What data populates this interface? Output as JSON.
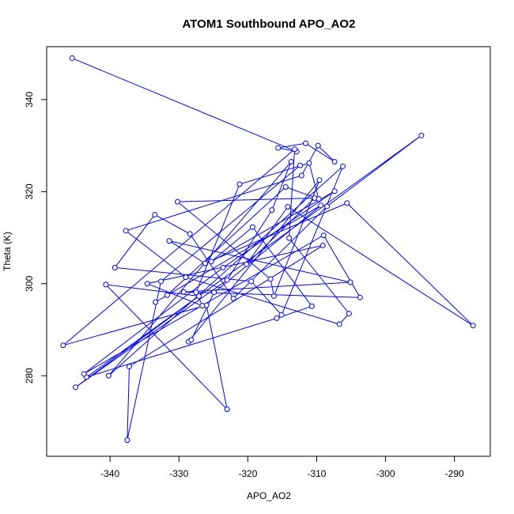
{
  "chart_data": {
    "type": "scatter",
    "connected": true,
    "title": "ATOM1 Southbound APO_AO2",
    "xlabel": "APO_AO2",
    "ylabel": "Theta (K)",
    "xlim": [
      -349.2,
      -284.8
    ],
    "ylim": [
      262.5,
      351.5
    ],
    "xticks": [
      -340,
      -330,
      -320,
      -310,
      -300,
      -290
    ],
    "xtick_labels": [
      "-340",
      "-330",
      "-320",
      "-310",
      "-300",
      "-290"
    ],
    "yticks": [
      280,
      300,
      320,
      340
    ],
    "ytick_labels": [
      "280",
      "300",
      "320",
      "340"
    ],
    "grid": false,
    "color": "#0000ff",
    "marker": "open-circle",
    "series": [
      {
        "x": [
          -345.5,
          -312.9,
          -315.6,
          -311.6,
          -307.4,
          -309.8,
          -312.2,
          -337.7,
          -329.0,
          -306.7,
          -305.3,
          -314.0,
          -313.2,
          -346.8,
          -326.0,
          -323.0,
          -340.6,
          -327.1,
          -345.0,
          -323.0,
          -316.5,
          -313.7,
          -340.2,
          -306.2,
          -315.1,
          -319.5,
          -339.3,
          -333.5,
          -328.4,
          -322.1,
          -308.5,
          -294.8,
          -343.4,
          -315.8,
          -310.7,
          -319.3,
          -325.3,
          -307.4,
          -323.6,
          -343.8,
          -309.0,
          -303.7,
          -329.3,
          -305.1,
          -331.4,
          -326.2,
          -305.6,
          -287.3,
          -314.2,
          -320.2,
          -310.3,
          -330.2,
          -316.7,
          -316.2,
          -309.6,
          -328.6,
          -328.2,
          -324.9,
          -309.4,
          -333.4,
          -331.7,
          -314.5,
          -309.7,
          -311.1,
          -321.2,
          -327.5,
          -326.6,
          -334.6,
          -309.1,
          -337.2,
          -337.5,
          -332.6,
          -312.4
        ],
        "y": [
          349.0,
          328.7,
          329.5,
          330.5,
          326.5,
          330.0,
          323.5,
          311.5,
          301.4,
          291.2,
          293.5,
          309.9,
          329.2,
          286.6,
          295.3,
          272.7,
          299.8,
          297.3,
          277.5,
          300.8,
          316.0,
          326.5,
          280.0,
          325.5,
          293.2,
          300.5,
          303.5,
          315.0,
          310.8,
          296.8,
          316.8,
          332.2,
          279.7,
          292.5,
          295.1,
          312.3,
          304.8,
          320.1,
          303.5,
          280.4,
          310.5,
          297.0,
          298.2,
          300.3,
          309.3,
          304.4,
          317.5,
          290.9,
          316.7,
          304.2,
          318.6,
          317.8,
          301.0,
          297.3,
          322.5,
          287.4,
          287.8,
          298.1,
          317.0,
          296.0,
          297.5,
          321.0,
          318.4,
          326.2,
          321.6,
          298.1,
          295.2,
          300.0,
          308.3,
          282.0,
          266.0,
          300.5,
          325.7
        ]
      }
    ]
  }
}
